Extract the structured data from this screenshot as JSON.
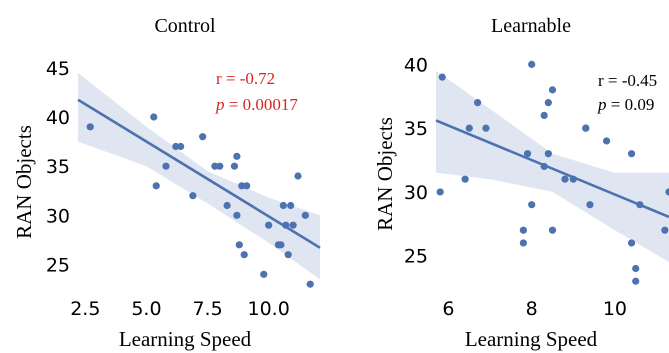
{
  "chart_data": [
    {
      "type": "scatter",
      "title": "Control",
      "xlabel": "Learning Speed",
      "ylabel": "RAN Objects",
      "xlim": [
        2.2,
        12.1
      ],
      "ylim": [
        22.0,
        46.0
      ],
      "xticks": [
        2.5,
        5.0,
        7.5,
        10.0
      ],
      "xtick_labels": [
        "2.5",
        "5.0",
        "7.5",
        "10.0"
      ],
      "yticks": [
        25,
        30,
        35,
        40,
        45
      ],
      "ytick_labels": [
        "25",
        "30",
        "35",
        "40",
        "45"
      ],
      "grid": false,
      "point_color": "#4c72b0",
      "line_color": "#4c72b0",
      "band_color": "#4c72b0",
      "stat_color": "#d62728",
      "stat_r": "r = -0.72",
      "stat_p_symbol": "p",
      "stat_p_value": " = 0.00017",
      "points": [
        {
          "x": 2.7,
          "y": 39.0
        },
        {
          "x": 5.3,
          "y": 40.0
        },
        {
          "x": 5.4,
          "y": 33.0
        },
        {
          "x": 5.8,
          "y": 35.0
        },
        {
          "x": 6.2,
          "y": 37.0
        },
        {
          "x": 6.4,
          "y": 37.0
        },
        {
          "x": 6.9,
          "y": 32.0
        },
        {
          "x": 7.3,
          "y": 38.0
        },
        {
          "x": 7.8,
          "y": 35.0
        },
        {
          "x": 8.0,
          "y": 35.0
        },
        {
          "x": 8.3,
          "y": 31.0
        },
        {
          "x": 8.6,
          "y": 35.0
        },
        {
          "x": 8.7,
          "y": 36.0
        },
        {
          "x": 8.7,
          "y": 30.0
        },
        {
          "x": 8.8,
          "y": 27.0
        },
        {
          "x": 8.9,
          "y": 33.0
        },
        {
          "x": 9.0,
          "y": 26.0
        },
        {
          "x": 9.1,
          "y": 33.0
        },
        {
          "x": 9.8,
          "y": 24.0
        },
        {
          "x": 10.0,
          "y": 29.0
        },
        {
          "x": 10.4,
          "y": 27.0
        },
        {
          "x": 10.5,
          "y": 27.0
        },
        {
          "x": 10.6,
          "y": 31.0
        },
        {
          "x": 10.7,
          "y": 29.0
        },
        {
          "x": 10.8,
          "y": 26.0
        },
        {
          "x": 10.9,
          "y": 31.0
        },
        {
          "x": 11.0,
          "y": 29.0
        },
        {
          "x": 11.2,
          "y": 34.0
        },
        {
          "x": 11.5,
          "y": 30.0
        },
        {
          "x": 11.7,
          "y": 23.0
        }
      ],
      "regression": {
        "slope": -1.52,
        "intercept": 45.1,
        "x_range": [
          2.2,
          12.1
        ]
      },
      "ci_band": {
        "x": [
          2.2,
          5.0,
          7.5,
          10.0,
          12.1
        ],
        "lower": [
          37.5,
          35.0,
          31.2,
          27.2,
          23.5
        ],
        "upper": [
          44.5,
          39.0,
          34.5,
          31.8,
          30.0
        ]
      }
    },
    {
      "type": "scatter",
      "title": "Learnable",
      "xlabel": "Learning Speed",
      "ylabel": "RAN Objects",
      "xlim": [
        5.7,
        11.3
      ],
      "ylim": [
        22.0,
        40.5
      ],
      "xticks": [
        6,
        8,
        10
      ],
      "xtick_labels": [
        "6",
        "8",
        "10"
      ],
      "yticks": [
        25,
        30,
        35,
        40
      ],
      "ytick_labels": [
        "25",
        "30",
        "35",
        "40"
      ],
      "grid": false,
      "point_color": "#4c72b0",
      "line_color": "#4c72b0",
      "band_color": "#4c72b0",
      "stat_color": "#000000",
      "stat_r": "r = -0.45",
      "stat_p_symbol": "p",
      "stat_p_value": " = 0.09",
      "points": [
        {
          "x": 5.8,
          "y": 30.0
        },
        {
          "x": 5.85,
          "y": 39.0
        },
        {
          "x": 6.4,
          "y": 31.0
        },
        {
          "x": 6.5,
          "y": 35.0
        },
        {
          "x": 6.7,
          "y": 37.0
        },
        {
          "x": 6.9,
          "y": 35.0
        },
        {
          "x": 7.8,
          "y": 26.0
        },
        {
          "x": 7.8,
          "y": 27.0
        },
        {
          "x": 7.9,
          "y": 33.0
        },
        {
          "x": 8.0,
          "y": 40.0
        },
        {
          "x": 8.0,
          "y": 29.0
        },
        {
          "x": 8.3,
          "y": 36.0
        },
        {
          "x": 8.3,
          "y": 32.0
        },
        {
          "x": 8.4,
          "y": 37.0
        },
        {
          "x": 8.4,
          "y": 33.0
        },
        {
          "x": 8.5,
          "y": 38.0
        },
        {
          "x": 8.5,
          "y": 27.0
        },
        {
          "x": 8.8,
          "y": 31.0
        },
        {
          "x": 9.0,
          "y": 31.0
        },
        {
          "x": 9.3,
          "y": 35.0
        },
        {
          "x": 9.3,
          "y": 35.0
        },
        {
          "x": 9.4,
          "y": 29.0
        },
        {
          "x": 9.8,
          "y": 34.0
        },
        {
          "x": 10.4,
          "y": 33.0
        },
        {
          "x": 10.4,
          "y": 26.0
        },
        {
          "x": 10.5,
          "y": 24.0
        },
        {
          "x": 10.5,
          "y": 23.0
        },
        {
          "x": 10.6,
          "y": 29.0
        },
        {
          "x": 11.2,
          "y": 27.0
        },
        {
          "x": 11.3,
          "y": 30.0
        }
      ],
      "regression": {
        "slope": -1.35,
        "intercept": 43.3,
        "x_range": [
          5.7,
          11.3
        ]
      },
      "ci_band": {
        "x": [
          5.7,
          7.0,
          8.5,
          10.0,
          11.3
        ],
        "lower": [
          31.5,
          31.0,
          30.0,
          27.0,
          24.5
        ],
        "upper": [
          39.5,
          36.5,
          33.0,
          31.5,
          31.5
        ]
      }
    }
  ]
}
